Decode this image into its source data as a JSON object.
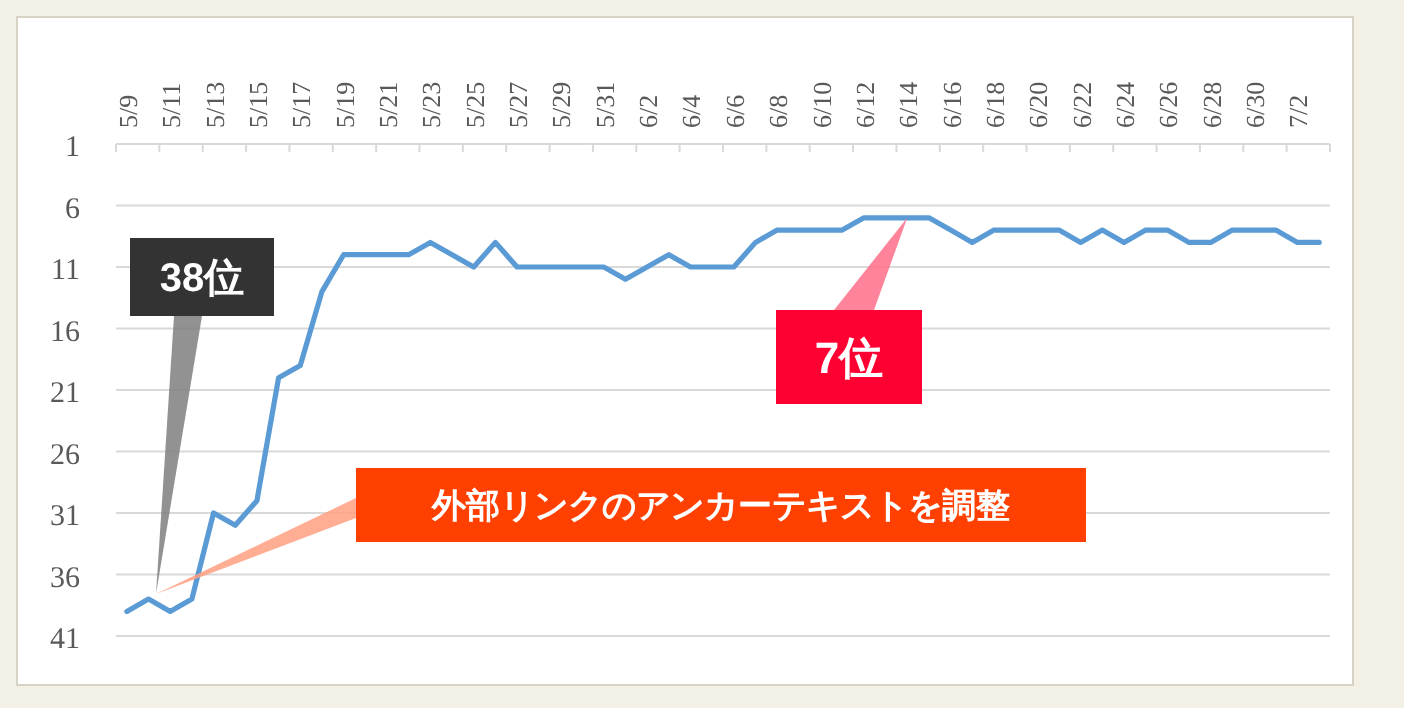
{
  "chart_data": {
    "type": "line",
    "categories": [
      "5/9",
      null,
      "5/11",
      null,
      "5/13",
      null,
      "5/15",
      null,
      "5/17",
      null,
      "5/19",
      null,
      "5/21",
      null,
      "5/23",
      null,
      "5/25",
      null,
      "5/27",
      null,
      "5/29",
      null,
      "5/31",
      null,
      "6/2",
      null,
      "6/4",
      null,
      "6/6",
      null,
      "6/8",
      null,
      "6/10",
      null,
      "6/12",
      null,
      "6/14",
      null,
      "6/16",
      null,
      "6/18",
      null,
      "6/20",
      null,
      "6/22",
      null,
      "6/24",
      null,
      "6/26",
      null,
      "6/28",
      null,
      "6/30",
      null,
      "7/2",
      null
    ],
    "series": [
      {
        "color": "#5b9bd5",
        "values": [
          39,
          38,
          39,
          38,
          31,
          32,
          30,
          20,
          19,
          13,
          10,
          10,
          10,
          10,
          9,
          10,
          11,
          9,
          11,
          11,
          11,
          11,
          11,
          12,
          11,
          10,
          11,
          11,
          11,
          9,
          8,
          8,
          8,
          8,
          7,
          7,
          7,
          7,
          8,
          9,
          8,
          8,
          8,
          8,
          9,
          8,
          9,
          8,
          8,
          9,
          9,
          8,
          8,
          8,
          9,
          9
        ]
      }
    ],
    "ylim": [
      41,
      1
    ],
    "yticks": [
      1,
      6,
      11,
      16,
      21,
      26,
      31,
      36,
      41
    ],
    "grid": "y",
    "marker": "none",
    "line_style": "solid",
    "annotations": [
      "38位",
      {
        "text": "7位",
        "x": "6/14",
        "y": 7
      },
      "外部リンクのアンカーテキストを調整"
    ]
  }
}
